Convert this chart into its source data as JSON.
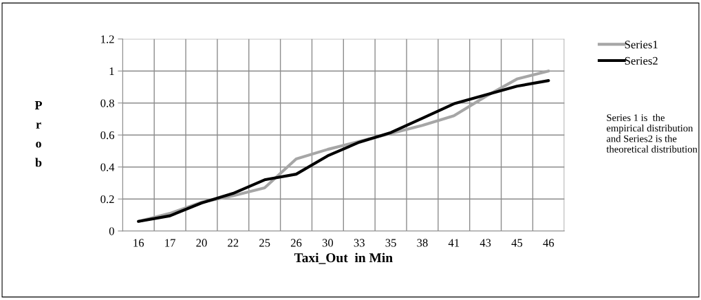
{
  "chart_data": {
    "type": "line",
    "xlabel": "Taxi_Out  in Min",
    "ylabel": "Prob",
    "categories": [
      "16",
      "17",
      "20",
      "22",
      "25",
      "26",
      "30",
      "33",
      "35",
      "38",
      "41",
      "43",
      "45",
      "46"
    ],
    "series": [
      {
        "name": "Series1",
        "color": "#a6a6a6",
        "values": [
          0.06,
          0.11,
          0.18,
          0.22,
          0.27,
          0.45,
          0.51,
          0.56,
          0.61,
          0.66,
          0.72,
          0.84,
          0.95,
          1.0
        ]
      },
      {
        "name": "Series2",
        "color": "#000000",
        "values": [
          0.06,
          0.095,
          0.175,
          0.235,
          0.32,
          0.355,
          0.47,
          0.555,
          0.615,
          0.705,
          0.795,
          0.85,
          0.905,
          0.94
        ]
      }
    ],
    "ylim": [
      0,
      1.2
    ],
    "yticks": [
      0,
      0.2,
      0.4,
      0.6,
      0.8,
      1,
      1.2
    ],
    "grid": true,
    "legend": "top right",
    "marker": "none",
    "line_style": "solid",
    "annotations": [
      "Series 1 is  the empirical distribution  and Series2 is the theoretical distribution"
    ]
  }
}
